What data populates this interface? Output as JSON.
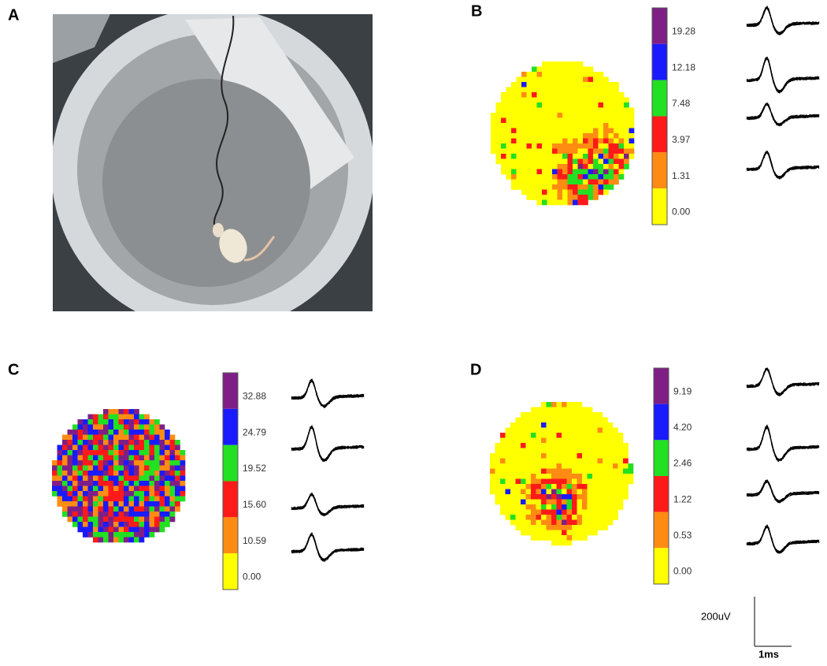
{
  "panels": [
    {
      "label": "A"
    },
    {
      "label": "B",
      "scale": [
        "19.28",
        "12.18",
        "7.48",
        "3.97",
        "1.31",
        "0.00"
      ]
    },
    {
      "label": "C",
      "scale": [
        "32.88",
        "24.79",
        "19.52",
        "15.60",
        "10.59",
        "0.00"
      ]
    },
    {
      "label": "D",
      "scale": [
        "9.19",
        "4.20",
        "2.46",
        "1.22",
        "0.53",
        "0.00"
      ]
    }
  ],
  "scale_bar": {
    "voltage": "200uV",
    "time": "1ms"
  }
}
